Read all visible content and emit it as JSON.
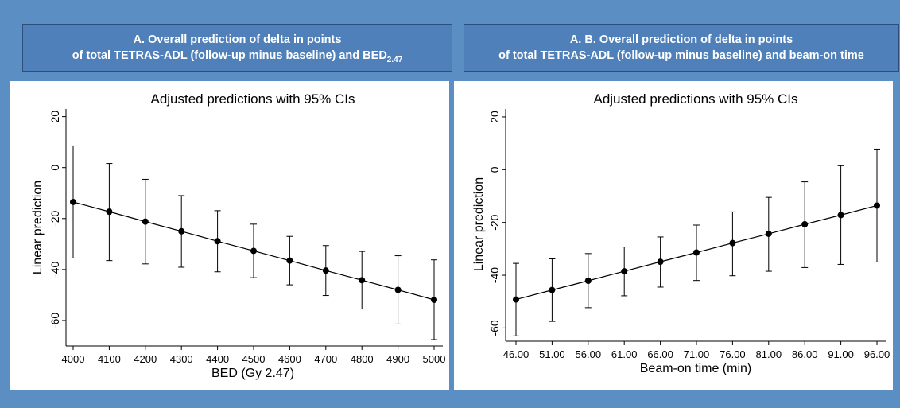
{
  "panel_a": {
    "header_line1": "A.  Overall prediction of  delta in points",
    "header_line2_main": "of total TETRAS-ADL (follow-up minus baseline) and BED",
    "header_line2_sub": "2.47"
  },
  "panel_b": {
    "header_line1": "A.  B. Overall prediction of  delta in points",
    "header_line2": "of total TETRAS-ADL (follow-up minus baseline) and beam-on time"
  },
  "chart_data": [
    {
      "type": "line",
      "title": "Adjusted predictions with 95% CIs",
      "xlabel": "BED (Gy 2.47)",
      "ylabel": "Linear prediction",
      "x": [
        "4000",
        "4100",
        "4200",
        "4300",
        "4400",
        "4500",
        "4600",
        "4700",
        "4800",
        "4900",
        "5000"
      ],
      "series": [
        {
          "values": [
            -13.5,
            -17.3,
            -21.2,
            -25.0,
            -28.9,
            -32.7,
            -36.5,
            -40.4,
            -44.2,
            -48.0,
            -51.9
          ],
          "ci_upper": [
            8.5,
            1.6,
            -4.6,
            -11.0,
            -16.9,
            -22.2,
            -27.0,
            -30.6,
            -32.9,
            -34.6,
            -36.2
          ],
          "ci_lower": [
            -35.5,
            -36.5,
            -37.8,
            -39.1,
            -40.9,
            -43.2,
            -46.0,
            -50.2,
            -55.5,
            -61.4,
            -67.5
          ]
        }
      ],
      "yticks": [
        "20",
        "0",
        "-20",
        "-40",
        "-60"
      ],
      "ylim": [
        -70,
        23
      ],
      "grid": false
    },
    {
      "type": "line",
      "title": "Adjusted predictions with 95% CIs",
      "xlabel": "Beam-on time (min)",
      "ylabel": "Linear prediction",
      "x": [
        "46.00",
        "51.00",
        "56.00",
        "61.00",
        "66.00",
        "71.00",
        "76.00",
        "81.00",
        "86.00",
        "91.00",
        "96.00"
      ],
      "series": [
        {
          "values": [
            -49.2,
            -45.6,
            -42.1,
            -38.5,
            -34.9,
            -31.4,
            -27.8,
            -24.3,
            -20.7,
            -17.2,
            -13.6
          ],
          "ci_upper": [
            -35.5,
            -33.8,
            -31.8,
            -29.3,
            -25.5,
            -21.0,
            -16.0,
            -10.5,
            -4.6,
            1.5,
            7.8
          ],
          "ci_lower": [
            -63.0,
            -57.5,
            -52.3,
            -47.8,
            -44.5,
            -42.0,
            -40.2,
            -38.5,
            -37.1,
            -35.9,
            -35.0
          ]
        }
      ],
      "yticks": [
        "20",
        "0",
        "-20",
        "-40",
        "-60"
      ],
      "ylim": [
        -65,
        23
      ],
      "grid": false
    }
  ]
}
